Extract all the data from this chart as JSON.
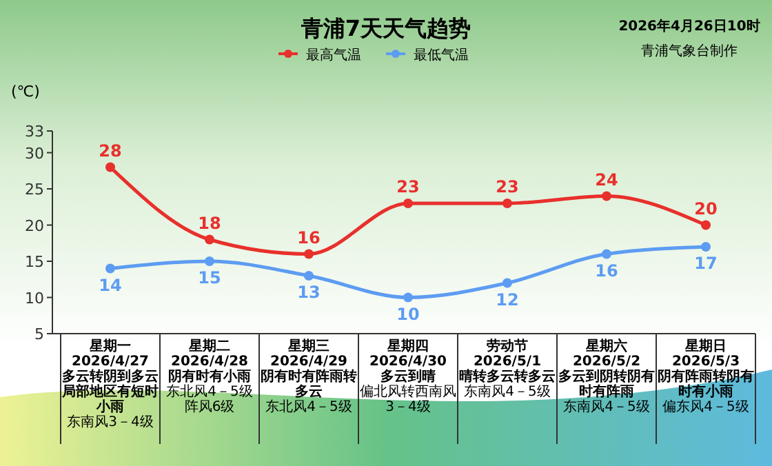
{
  "chart_data": {
    "type": "line",
    "title": "青浦7天天气趋势",
    "ylabel": "(℃)",
    "annotations": [
      "2026年4月26日10时",
      "青浦气象台制作",
      "多云转阴到多云局部地区有短时小雨",
      "东南风3－4级",
      "阴有时有小雨",
      "东北风4－5级阵风6级",
      "阴有时有阵雨转多云",
      "东北风4－5级",
      "多云到晴",
      "偏北风转西南风3－4级",
      "晴转多云转多云",
      "东南风4－5级",
      "多云到阴转阴有时有阵雨",
      "东南风4－5级",
      "阴有阵雨转阴有时有小雨",
      "偏东风4－5级"
    ],
    "categories": [
      "星期一\n2026/4/27",
      "星期二\n2026/4/28",
      "星期三\n2026/4/29",
      "星期四\n2026/4/30",
      "劳动节\n2026/5/1",
      "星期六\n2026/5/2",
      "星期日\n2026/5/3"
    ],
    "series": [
      {
        "name": "最高气温",
        "color": "#e8302c",
        "values": [
          28,
          18,
          16,
          23,
          23,
          24,
          20
        ]
      },
      {
        "name": "最低气温",
        "color": "#5d9cf2",
        "values": [
          14,
          15,
          13,
          10,
          12,
          16,
          17
        ]
      }
    ],
    "ylim": [
      5,
      33
    ],
    "yticks": [
      5,
      10,
      15,
      20,
      25,
      30,
      33
    ],
    "data_labels": true,
    "legend": "top",
    "marker": "circle",
    "grid": false
  }
}
